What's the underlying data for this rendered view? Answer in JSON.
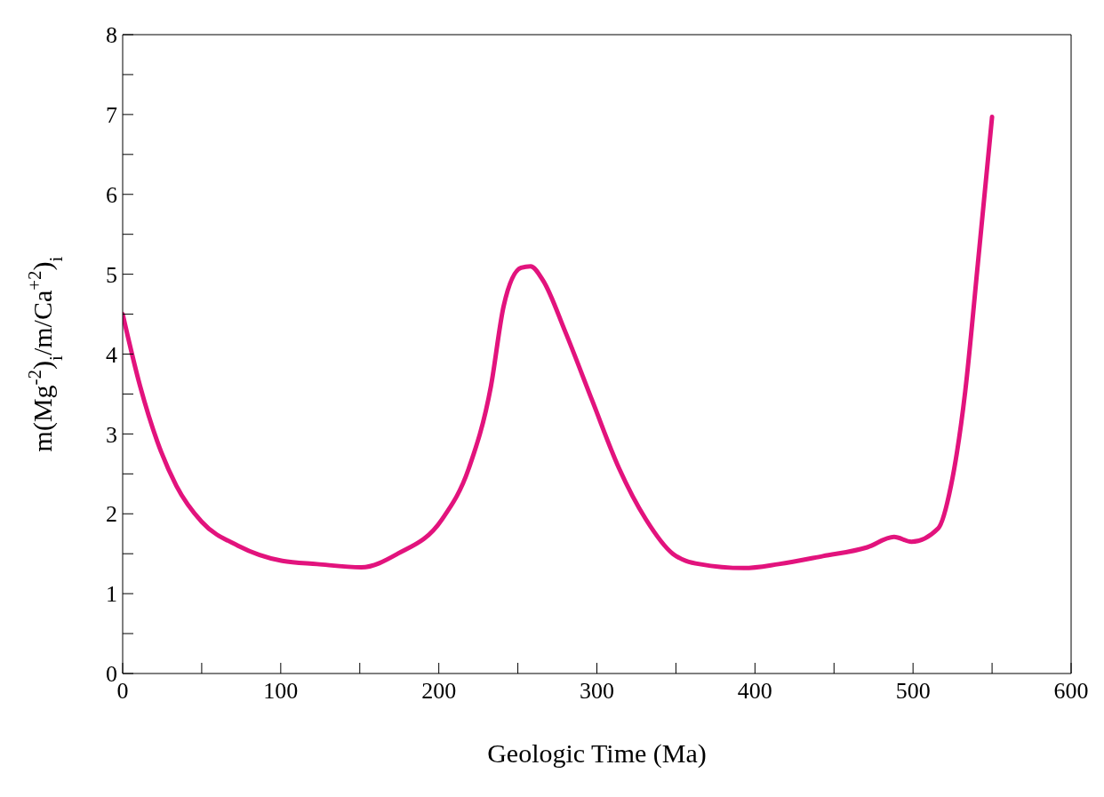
{
  "chart_data": {
    "type": "line",
    "xlabel": "Geologic Time (Ma)",
    "ylabel": "m(Mg$^{-2}$)$_{i}$/m/Ca$^{+2}$)$_{i}$",
    "series": [
      {
        "color": "#e2137d",
        "x": [
          0,
          11,
          22,
          34,
          50,
          73,
          101,
          123,
          151,
          174,
          202,
          219,
          233,
          241,
          252,
          258,
          266,
          280,
          297,
          314,
          331,
          348,
          365,
          393,
          415,
          443,
          471,
          488,
          499,
          516,
          524,
          533,
          541,
          550
        ],
        "values": [
          4.5,
          3.6,
          2.9,
          2.35,
          1.9,
          1.6,
          1.41,
          1.37,
          1.33,
          1.5,
          1.93,
          2.57,
          3.6,
          4.6,
          5.08,
          5.1,
          4.92,
          4.28,
          3.42,
          2.57,
          1.93,
          1.5,
          1.37,
          1.32,
          1.37,
          1.47,
          1.58,
          1.71,
          1.65,
          1.82,
          2.35,
          3.53,
          5.13,
          6.97
        ]
      }
    ],
    "xlim": [
      0,
      600
    ],
    "xticks": [
      0,
      {
        "value": 50,
        "label": null
      },
      100,
      {
        "value": 150,
        "label": null
      },
      200,
      {
        "value": 250,
        "label": null
      },
      300,
      {
        "value": 350,
        "label": null
      },
      400,
      {
        "value": 450,
        "label": null
      },
      500,
      {
        "value": 550,
        "label": null
      },
      600
    ],
    "ylim": [
      0,
      8
    ],
    "yticks": [
      0,
      {
        "value": 0.5,
        "label": null
      },
      1,
      {
        "value": 1.5,
        "label": null
      },
      2,
      {
        "value": 2.5,
        "label": null
      },
      3,
      {
        "value": 3.5,
        "label": null
      },
      4,
      {
        "value": 4.5,
        "label": null
      },
      5,
      {
        "value": 5.5,
        "label": null
      },
      6,
      {
        "value": 6.5,
        "label": null
      },
      7,
      {
        "value": 7.5,
        "label": null
      },
      8
    ],
    "grid": false,
    "legend": false,
    "marker": "none",
    "line_style": "solid"
  }
}
